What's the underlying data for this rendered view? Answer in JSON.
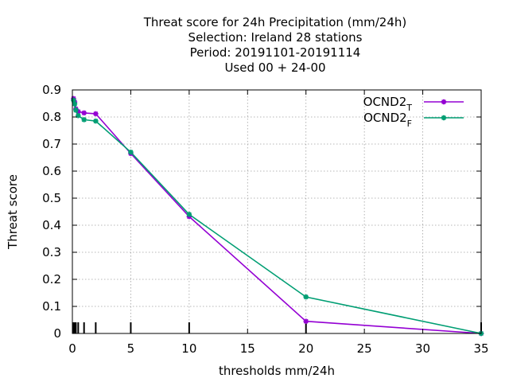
{
  "chart_data": {
    "type": "line",
    "title": [
      "Threat score  for 24h Precipitation (mm/24h)",
      "Selection: Ireland      28 stations",
      "Period: 20191101-20191114",
      "Used  00 + 24-00"
    ],
    "xlabel": "thresholds mm/24h",
    "ylabel": "Threat score",
    "xlim": [
      0,
      35
    ],
    "ylim": [
      0,
      0.9
    ],
    "xticks": [
      0,
      5,
      10,
      15,
      20,
      25,
      30,
      35
    ],
    "yticks": [
      0,
      0.1,
      0.2,
      0.3,
      0.4,
      0.5,
      0.6,
      0.7,
      0.8,
      0.9
    ],
    "grid": true,
    "legend_position": "top-right",
    "threshold_markers": [
      0.1,
      0.2,
      0.3,
      0.5,
      1,
      2,
      5,
      10,
      20,
      35
    ],
    "series": [
      {
        "name": "OCND2",
        "subscript": "T",
        "color": "#9400d3",
        "x": [
          0.1,
          0.2,
          0.3,
          0.5,
          1,
          2,
          5,
          10,
          20,
          35
        ],
        "y": [
          0.868,
          0.855,
          0.83,
          0.82,
          0.815,
          0.812,
          0.665,
          0.432,
          0.045,
          0
        ]
      },
      {
        "name": "OCND2",
        "subscript": "F",
        "color": "#009e73",
        "x": [
          0.1,
          0.2,
          0.3,
          0.5,
          1,
          2,
          5,
          10,
          20,
          35
        ],
        "y": [
          0.862,
          0.848,
          0.825,
          0.805,
          0.79,
          0.785,
          0.67,
          0.44,
          0.135,
          0
        ]
      }
    ]
  }
}
